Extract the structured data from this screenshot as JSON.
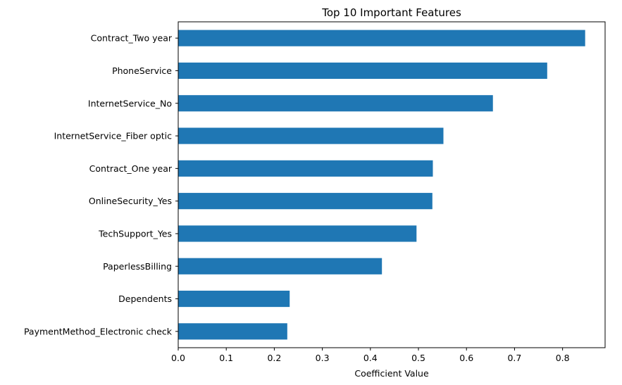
{
  "chart_data": {
    "type": "bar",
    "orientation": "horizontal",
    "title": "Top 10 Important Features",
    "xlabel": "Coefficient Value",
    "ylabel": "",
    "categories": [
      "PaymentMethod_Electronic check",
      "Dependents",
      "PaperlessBilling",
      "TechSupport_Yes",
      "OnlineSecurity_Yes",
      "Contract_One year",
      "InternetService_Fiber optic",
      "InternetService_No",
      "PhoneService",
      "Contract_Two year"
    ],
    "values": [
      0.227,
      0.232,
      0.424,
      0.496,
      0.529,
      0.53,
      0.552,
      0.655,
      0.768,
      0.847
    ],
    "xlim": [
      0,
      0.8885
    ],
    "xticks": [
      0.0,
      0.1,
      0.2,
      0.3,
      0.4,
      0.5,
      0.6,
      0.7,
      0.8
    ],
    "xtick_labels": [
      "0.0",
      "0.1",
      "0.2",
      "0.3",
      "0.4",
      "0.5",
      "0.6",
      "0.7",
      "0.8"
    ],
    "grid": false,
    "legend": "none",
    "bar_color": "#1f77b4"
  }
}
